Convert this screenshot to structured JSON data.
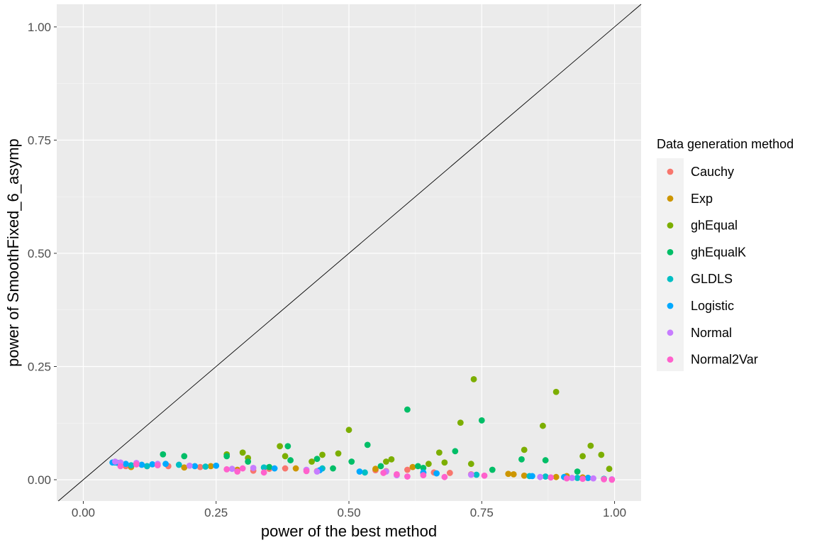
{
  "chart_data": {
    "type": "scatter",
    "title": "",
    "xlabel": "power of the best method",
    "ylabel": "power of SmoothFixed_6_asymp",
    "xlim": [
      -0.05,
      1.05
    ],
    "ylim": [
      -0.047,
      1.05
    ],
    "xticks": [
      0,
      0.25,
      0.5,
      0.75,
      1
    ],
    "xtick_labels": [
      "0.00",
      "0.25",
      "0.50",
      "0.75",
      "1.00"
    ],
    "yticks": [
      0,
      0.25,
      0.5,
      0.75,
      1
    ],
    "ytick_labels": [
      "0.00",
      "0.25",
      "0.50",
      "0.75",
      "1.00"
    ],
    "grid": true,
    "reference_line": {
      "slope": 1,
      "intercept": 0
    },
    "legend": {
      "title": "Data generation method",
      "placement": "right"
    },
    "series": [
      {
        "name": "Cauchy",
        "color": "#F8766D",
        "points": [
          [
            0.08,
            0.03
          ],
          [
            0.1,
            0.034
          ],
          [
            0.16,
            0.03
          ],
          [
            0.22,
            0.028
          ],
          [
            0.32,
            0.02
          ],
          [
            0.35,
            0.024
          ],
          [
            0.38,
            0.025
          ],
          [
            0.44,
            0.019
          ],
          [
            0.55,
            0.021
          ],
          [
            0.57,
            0.019
          ],
          [
            0.61,
            0.022
          ],
          [
            0.66,
            0.016
          ],
          [
            0.69,
            0.015
          ],
          [
            0.73,
            0.012
          ]
        ]
      },
      {
        "name": "Exp",
        "color": "#CD9600",
        "points": [
          [
            0.09,
            0.028
          ],
          [
            0.12,
            0.03
          ],
          [
            0.19,
            0.027
          ],
          [
            0.24,
            0.03
          ],
          [
            0.29,
            0.022
          ],
          [
            0.4,
            0.025
          ],
          [
            0.55,
            0.024
          ],
          [
            0.62,
            0.028
          ],
          [
            0.8,
            0.013
          ],
          [
            0.81,
            0.012
          ],
          [
            0.83,
            0.009
          ],
          [
            0.89,
            0.006
          ],
          [
            0.91,
            0.008
          ],
          [
            0.94,
            0.005
          ],
          [
            0.95,
            0.004
          ]
        ]
      },
      {
        "name": "ghEqual",
        "color": "#7CAE00",
        "points": [
          [
            0.27,
            0.056
          ],
          [
            0.3,
            0.06
          ],
          [
            0.31,
            0.048
          ],
          [
            0.37,
            0.074
          ],
          [
            0.38,
            0.052
          ],
          [
            0.43,
            0.04
          ],
          [
            0.45,
            0.055
          ],
          [
            0.48,
            0.058
          ],
          [
            0.5,
            0.11
          ],
          [
            0.57,
            0.04
          ],
          [
            0.58,
            0.045
          ],
          [
            0.65,
            0.035
          ],
          [
            0.67,
            0.06
          ],
          [
            0.68,
            0.038
          ],
          [
            0.71,
            0.126
          ],
          [
            0.73,
            0.035
          ],
          [
            0.735,
            0.222
          ],
          [
            0.83,
            0.066
          ],
          [
            0.865,
            0.119
          ],
          [
            0.89,
            0.194
          ],
          [
            0.94,
            0.052
          ],
          [
            0.955,
            0.075
          ],
          [
            0.975,
            0.055
          ],
          [
            0.99,
            0.024
          ]
        ]
      },
      {
        "name": "ghEqualK",
        "color": "#00BE67",
        "points": [
          [
            0.15,
            0.056
          ],
          [
            0.19,
            0.052
          ],
          [
            0.27,
            0.052
          ],
          [
            0.31,
            0.04
          ],
          [
            0.35,
            0.028
          ],
          [
            0.385,
            0.074
          ],
          [
            0.39,
            0.043
          ],
          [
            0.44,
            0.046
          ],
          [
            0.47,
            0.025
          ],
          [
            0.505,
            0.04
          ],
          [
            0.535,
            0.077
          ],
          [
            0.56,
            0.03
          ],
          [
            0.61,
            0.155
          ],
          [
            0.63,
            0.03
          ],
          [
            0.64,
            0.026
          ],
          [
            0.7,
            0.063
          ],
          [
            0.75,
            0.131
          ],
          [
            0.77,
            0.022
          ],
          [
            0.825,
            0.045
          ],
          [
            0.87,
            0.043
          ],
          [
            0.93,
            0.018
          ]
        ]
      },
      {
        "name": "GLDLS",
        "color": "#00BFC4",
        "points": [
          [
            0.06,
            0.038
          ],
          [
            0.07,
            0.034
          ],
          [
            0.09,
            0.032
          ],
          [
            0.12,
            0.03
          ],
          [
            0.18,
            0.033
          ],
          [
            0.23,
            0.029
          ],
          [
            0.34,
            0.027
          ],
          [
            0.45,
            0.025
          ],
          [
            0.53,
            0.016
          ],
          [
            0.64,
            0.015
          ],
          [
            0.74,
            0.011
          ],
          [
            0.84,
            0.008
          ],
          [
            0.87,
            0.007
          ],
          [
            0.93,
            0.004
          ],
          [
            0.98,
            0.002
          ]
        ]
      },
      {
        "name": "Logistic",
        "color": "#00A9FF",
        "points": [
          [
            0.055,
            0.038
          ],
          [
            0.065,
            0.037
          ],
          [
            0.08,
            0.035
          ],
          [
            0.11,
            0.033
          ],
          [
            0.13,
            0.034
          ],
          [
            0.155,
            0.035
          ],
          [
            0.21,
            0.03
          ],
          [
            0.25,
            0.031
          ],
          [
            0.36,
            0.025
          ],
          [
            0.445,
            0.021
          ],
          [
            0.52,
            0.018
          ],
          [
            0.64,
            0.016
          ],
          [
            0.665,
            0.014
          ],
          [
            0.845,
            0.008
          ],
          [
            0.905,
            0.006
          ],
          [
            0.95,
            0.004
          ]
        ]
      },
      {
        "name": "Normal",
        "color": "#C77CFF",
        "points": [
          [
            0.06,
            0.04
          ],
          [
            0.07,
            0.038
          ],
          [
            0.1,
            0.037
          ],
          [
            0.14,
            0.035
          ],
          [
            0.2,
            0.031
          ],
          [
            0.28,
            0.024
          ],
          [
            0.32,
            0.026
          ],
          [
            0.42,
            0.022
          ],
          [
            0.44,
            0.018
          ],
          [
            0.57,
            0.018
          ],
          [
            0.59,
            0.01
          ],
          [
            0.73,
            0.011
          ],
          [
            0.86,
            0.006
          ],
          [
            0.92,
            0.004
          ],
          [
            0.96,
            0.003
          ],
          [
            0.995,
            0.001
          ]
        ]
      },
      {
        "name": "Normal2Var",
        "color": "#FF61CC",
        "points": [
          [
            0.07,
            0.03
          ],
          [
            0.1,
            0.034
          ],
          [
            0.14,
            0.032
          ],
          [
            0.27,
            0.023
          ],
          [
            0.29,
            0.018
          ],
          [
            0.3,
            0.025
          ],
          [
            0.34,
            0.016
          ],
          [
            0.42,
            0.019
          ],
          [
            0.565,
            0.015
          ],
          [
            0.59,
            0.012
          ],
          [
            0.61,
            0.007
          ],
          [
            0.64,
            0.01
          ],
          [
            0.68,
            0.006
          ],
          [
            0.755,
            0.009
          ],
          [
            0.88,
            0.005
          ],
          [
            0.91,
            0.003
          ],
          [
            0.94,
            0.002
          ],
          [
            0.98,
            0.001
          ],
          [
            0.995,
            0.0
          ]
        ]
      }
    ]
  }
}
